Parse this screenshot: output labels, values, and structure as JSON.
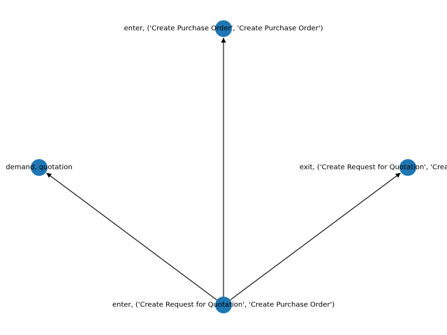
{
  "graph": {
    "node_color": "#1f77b4",
    "edge_color": "#000000",
    "nodes": [
      {
        "id": "n_top",
        "label": "enter, ('Create Purchase Order', 'Create Purchase Order')"
      },
      {
        "id": "n_left",
        "label": "demand, quotation"
      },
      {
        "id": "n_right",
        "label": "exit, ('Create Request for Quotation', 'Create Purchase Order')"
      },
      {
        "id": "n_bottom",
        "label": "enter, ('Create Request for Quotation', 'Create Purchase Order')"
      }
    ],
    "edges": [
      {
        "source": "n_bottom",
        "target": "n_top"
      },
      {
        "source": "n_bottom",
        "target": "n_left"
      },
      {
        "source": "n_bottom",
        "target": "n_right"
      }
    ]
  }
}
